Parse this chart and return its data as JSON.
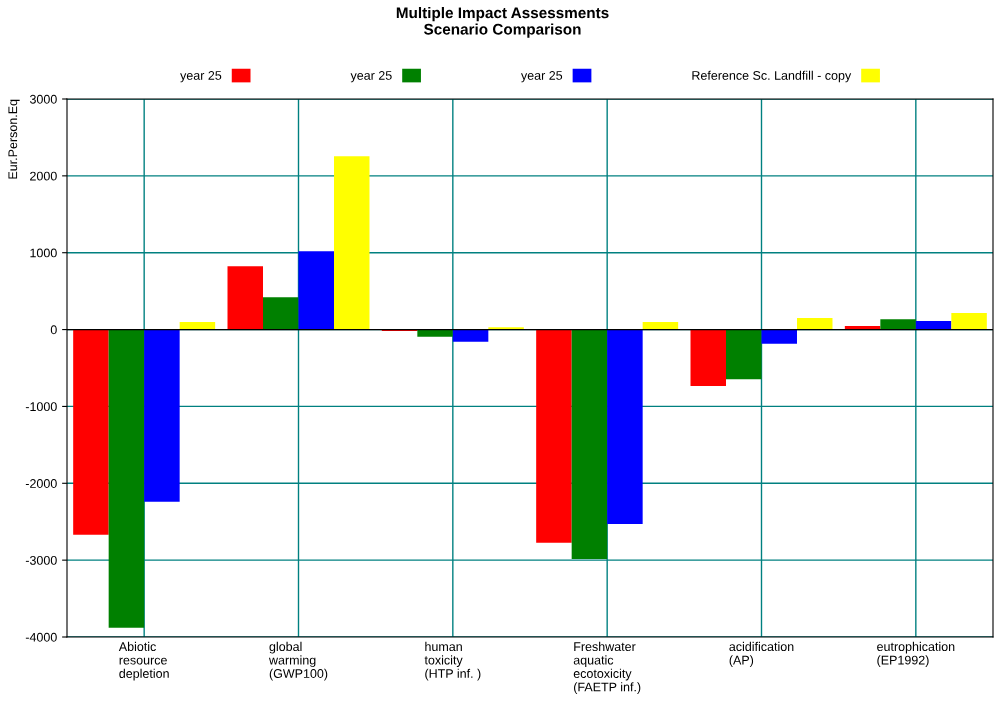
{
  "chart_data": {
    "type": "bar",
    "title": "Multiple Impact Assessments\nScenario Comparison",
    "ylabel": "Eur.Person.Eq",
    "categories": [
      "Abiotic\nresource\ndepletion",
      "global\nwarming\n(GWP100)",
      "human\ntoxicity\n(HTP inf. )",
      "Freshwater\naquatic\necotoxicity\n(FAETP inf.)",
      "acidification\n(AP)",
      "eutrophication\n(EP1992)"
    ],
    "series": [
      {
        "name": "year 25",
        "color": "#ff0000",
        "values": [
          -2670,
          825,
          -20,
          -2775,
          -735,
          45
        ]
      },
      {
        "name": "year 25",
        "color": "#008000",
        "values": [
          -3880,
          420,
          -95,
          -2985,
          -645,
          135
        ]
      },
      {
        "name": "year 25",
        "color": "#0000ff",
        "values": [
          -2240,
          1020,
          -160,
          -2530,
          -185,
          110
        ]
      },
      {
        "name": "Reference Sc. Landfill - copy",
        "color": "#ffff00",
        "values": [
          100,
          2255,
          30,
          100,
          150,
          215
        ]
      }
    ],
    "ylim": [
      -4000,
      3000
    ],
    "yticks": [
      -4000,
      -3000,
      -2000,
      -1000,
      0,
      1000,
      2000,
      3000
    ],
    "grid": true,
    "legend": "top"
  }
}
